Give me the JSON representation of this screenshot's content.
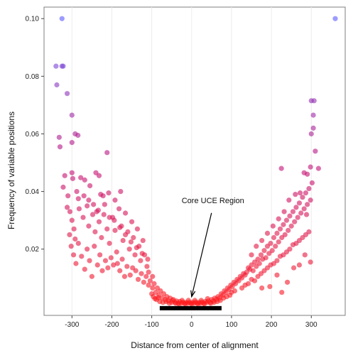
{
  "chart_data": {
    "type": "scatter",
    "title": "",
    "xlabel": "Distance from center of alignment",
    "ylabel": "Frequency of variable positions",
    "xlim": [
      -370,
      385
    ],
    "ylim": [
      -0.003,
      0.104
    ],
    "x_ticks": [
      -300,
      -200,
      -100,
      0,
      100,
      200,
      300
    ],
    "x_tick_labels": [
      "-300",
      "-200",
      "-100",
      "0",
      "100",
      "200",
      "300"
    ],
    "y_ticks": [
      0.02,
      0.04,
      0.06,
      0.08,
      0.1
    ],
    "y_tick_labels": [
      "0.02",
      "0.04",
      "0.06",
      "0.08",
      "0.10"
    ],
    "grid": true,
    "color_encoding": "point color shifts from red (low frequency) to blue-violet (high frequency)",
    "colors": {
      "low": "#ff1a1a",
      "mid": "#c0107a",
      "high": "#5a5aff"
    },
    "annotation": {
      "text": "Core UCE Region",
      "arrow_to": [
        0,
        0.0035
      ],
      "text_at": [
        -25,
        0.036
      ]
    },
    "core_region_bar": {
      "x_start": -80,
      "x_end": 75,
      "y": -0.0005
    },
    "points": [
      [
        -325,
        0.1
      ],
      [
        360,
        0.1
      ],
      [
        -340,
        0.0835
      ],
      [
        -325,
        0.0835
      ],
      [
        -322,
        0.0835
      ],
      [
        -338,
        0.077
      ],
      [
        -312,
        0.074
      ],
      [
        -300,
        0.0665
      ],
      [
        -292,
        0.06
      ],
      [
        -285,
        0.0595
      ],
      [
        -300,
        0.057
      ],
      [
        -332,
        0.0588
      ],
      [
        -330,
        0.0555
      ],
      [
        300,
        0.0715
      ],
      [
        307,
        0.0715
      ],
      [
        305,
        0.0665
      ],
      [
        300,
        0.06
      ],
      [
        305,
        0.062
      ],
      [
        310,
        0.054
      ],
      [
        318,
        0.048
      ],
      [
        282,
        0.0465
      ],
      [
        298,
        0.0485
      ],
      [
        290,
        0.046
      ],
      [
        225,
        0.048
      ],
      [
        -318,
        0.0455
      ],
      [
        -322,
        0.0415
      ],
      [
        -300,
        0.0465
      ],
      [
        -298,
        0.0445
      ],
      [
        -278,
        0.0448
      ],
      [
        -240,
        0.0465
      ],
      [
        -232,
        0.0455
      ],
      [
        -212,
        0.0535
      ],
      [
        -288,
        0.04
      ],
      [
        -268,
        0.044
      ],
      [
        -255,
        0.042
      ],
      [
        -228,
        0.039
      ],
      [
        -222,
        0.0385
      ],
      [
        -208,
        0.0395
      ],
      [
        -178,
        0.04
      ],
      [
        -192,
        0.037
      ],
      [
        -310,
        0.0385
      ],
      [
        -305,
        0.033
      ],
      [
        -300,
        0.03
      ],
      [
        -295,
        0.027
      ],
      [
        -282,
        0.034
      ],
      [
        -272,
        0.031
      ],
      [
        -262,
        0.035
      ],
      [
        -258,
        0.028
      ],
      [
        -248,
        0.032
      ],
      [
        -242,
        0.026
      ],
      [
        -238,
        0.033
      ],
      [
        -232,
        0.0295
      ],
      [
        -226,
        0.024
      ],
      [
        -218,
        0.0355
      ],
      [
        -212,
        0.027
      ],
      [
        -206,
        0.022
      ],
      [
        -198,
        0.031
      ],
      [
        -192,
        0.0265
      ],
      [
        -188,
        0.019
      ],
      [
        -182,
        0.034
      ],
      [
        -176,
        0.028
      ],
      [
        -172,
        0.023
      ],
      [
        -166,
        0.0325
      ],
      [
        -160,
        0.026
      ],
      [
        -156,
        0.02
      ],
      [
        -150,
        0.0295
      ],
      [
        -146,
        0.024
      ],
      [
        -142,
        0.018
      ],
      [
        -136,
        0.027
      ],
      [
        -132,
        0.021
      ],
      [
        -128,
        0.016
      ],
      [
        -122,
        0.023
      ],
      [
        -118,
        0.018
      ],
      [
        -112,
        0.014
      ],
      [
        -108,
        0.012
      ],
      [
        -302,
        0.021
      ],
      [
        -296,
        0.018
      ],
      [
        -290,
        0.015
      ],
      [
        -284,
        0.022
      ],
      [
        -276,
        0.0175
      ],
      [
        -268,
        0.013
      ],
      [
        -262,
        0.02
      ],
      [
        -256,
        0.016
      ],
      [
        -250,
        0.0105
      ],
      [
        -244,
        0.021
      ],
      [
        -236,
        0.0145
      ],
      [
        -230,
        0.018
      ],
      [
        -224,
        0.0125
      ],
      [
        -216,
        0.016
      ],
      [
        -210,
        0.0135
      ],
      [
        -202,
        0.017
      ],
      [
        -196,
        0.0145
      ],
      [
        -186,
        0.015
      ],
      [
        -180,
        0.0125
      ],
      [
        -174,
        0.0165
      ],
      [
        -168,
        0.0105
      ],
      [
        -162,
        0.014
      ],
      [
        -154,
        0.011
      ],
      [
        -148,
        0.0135
      ],
      [
        -140,
        0.0125
      ],
      [
        -134,
        0.0095
      ],
      [
        -126,
        0.0115
      ],
      [
        -120,
        0.0085
      ],
      [
        -114,
        0.0105
      ],
      [
        -108,
        0.0075
      ],
      [
        -104,
        0.009
      ],
      [
        -98,
        0.0065
      ],
      [
        -94,
        0.008
      ],
      [
        -90,
        0.005
      ],
      [
        -86,
        0.0065
      ],
      [
        -82,
        0.004
      ],
      [
        -78,
        0.0055
      ],
      [
        -74,
        0.003
      ],
      [
        -70,
        0.0045
      ],
      [
        -66,
        0.0025
      ],
      [
        -62,
        0.0035
      ],
      [
        -58,
        0.002
      ],
      [
        -54,
        0.003
      ],
      [
        -50,
        0.0015
      ],
      [
        -46,
        0.0025
      ],
      [
        -42,
        0.0015
      ],
      [
        -38,
        0.002
      ],
      [
        -34,
        0.0012
      ],
      [
        -30,
        0.0018
      ],
      [
        -26,
        0.0012
      ],
      [
        -22,
        0.0016
      ],
      [
        -18,
        0.0012
      ],
      [
        -14,
        0.0015
      ],
      [
        -10,
        0.0012
      ],
      [
        -6,
        0.0015
      ],
      [
        -2,
        0.0012
      ],
      [
        2,
        0.0015
      ],
      [
        6,
        0.0012
      ],
      [
        10,
        0.0016
      ],
      [
        14,
        0.0012
      ],
      [
        18,
        0.0015
      ],
      [
        22,
        0.0012
      ],
      [
        26,
        0.0016
      ],
      [
        30,
        0.0012
      ],
      [
        34,
        0.0018
      ],
      [
        38,
        0.0015
      ],
      [
        42,
        0.002
      ],
      [
        46,
        0.0015
      ],
      [
        50,
        0.0025
      ],
      [
        54,
        0.002
      ],
      [
        58,
        0.003
      ],
      [
        62,
        0.0025
      ],
      [
        66,
        0.0035
      ],
      [
        70,
        0.003
      ],
      [
        74,
        0.0045
      ],
      [
        78,
        0.004
      ],
      [
        82,
        0.0055
      ],
      [
        86,
        0.005
      ],
      [
        90,
        0.0065
      ],
      [
        94,
        0.006
      ],
      [
        98,
        0.0075
      ],
      [
        102,
        0.007
      ],
      [
        106,
        0.0085
      ],
      [
        110,
        0.008
      ],
      [
        114,
        0.0095
      ],
      [
        118,
        0.009
      ],
      [
        122,
        0.0105
      ],
      [
        126,
        0.01
      ],
      [
        130,
        0.0115
      ],
      [
        134,
        0.011
      ],
      [
        -88,
        0.0025
      ],
      [
        -80,
        0.0018
      ],
      [
        -72,
        0.0015
      ],
      [
        -64,
        0.0018
      ],
      [
        -56,
        0.0012
      ],
      [
        -48,
        0.0022
      ],
      [
        -40,
        0.0012
      ],
      [
        -32,
        0.001
      ],
      [
        -24,
        0.0022
      ],
      [
        -16,
        0.001
      ],
      [
        -8,
        0.0022
      ],
      [
        0,
        0.001
      ],
      [
        8,
        0.0022
      ],
      [
        16,
        0.001
      ],
      [
        24,
        0.0022
      ],
      [
        32,
        0.001
      ],
      [
        40,
        0.0028
      ],
      [
        48,
        0.0012
      ],
      [
        56,
        0.0015
      ],
      [
        64,
        0.0018
      ],
      [
        72,
        0.0022
      ],
      [
        80,
        0.003
      ],
      [
        88,
        0.0035
      ],
      [
        96,
        0.004
      ],
      [
        -96,
        0.0035
      ],
      [
        -100,
        0.0045
      ],
      [
        -92,
        0.0028
      ],
      [
        -84,
        0.0032
      ],
      [
        100,
        0.005
      ],
      [
        108,
        0.0055
      ],
      [
        138,
        0.012
      ],
      [
        142,
        0.0135
      ],
      [
        146,
        0.013
      ],
      [
        150,
        0.0145
      ],
      [
        154,
        0.0125
      ],
      [
        158,
        0.0155
      ],
      [
        162,
        0.014
      ],
      [
        166,
        0.0165
      ],
      [
        170,
        0.015
      ],
      [
        174,
        0.018
      ],
      [
        178,
        0.0165
      ],
      [
        182,
        0.0195
      ],
      [
        186,
        0.017
      ],
      [
        190,
        0.021
      ],
      [
        194,
        0.0185
      ],
      [
        198,
        0.022
      ],
      [
        202,
        0.0195
      ],
      [
        206,
        0.024
      ],
      [
        210,
        0.021
      ],
      [
        214,
        0.0255
      ],
      [
        218,
        0.0225
      ],
      [
        222,
        0.027
      ],
      [
        226,
        0.024
      ],
      [
        230,
        0.0285
      ],
      [
        234,
        0.025
      ],
      [
        238,
        0.03
      ],
      [
        242,
        0.0265
      ],
      [
        246,
        0.0315
      ],
      [
        250,
        0.028
      ],
      [
        254,
        0.033
      ],
      [
        258,
        0.0295
      ],
      [
        262,
        0.0345
      ],
      [
        266,
        0.031
      ],
      [
        270,
        0.036
      ],
      [
        274,
        0.0325
      ],
      [
        278,
        0.038
      ],
      [
        282,
        0.034
      ],
      [
        286,
        0.0395
      ],
      [
        290,
        0.0355
      ],
      [
        294,
        0.041
      ],
      [
        298,
        0.037
      ],
      [
        302,
        0.043
      ],
      [
        126,
        0.0065
      ],
      [
        134,
        0.0075
      ],
      [
        142,
        0.008
      ],
      [
        150,
        0.0095
      ],
      [
        158,
        0.009
      ],
      [
        166,
        0.0105
      ],
      [
        174,
        0.0115
      ],
      [
        182,
        0.0125
      ],
      [
        190,
        0.0135
      ],
      [
        198,
        0.0145
      ],
      [
        206,
        0.015
      ],
      [
        214,
        0.016
      ],
      [
        222,
        0.0175
      ],
      [
        230,
        0.018
      ],
      [
        238,
        0.019
      ],
      [
        246,
        0.02
      ],
      [
        254,
        0.0215
      ],
      [
        262,
        0.022
      ],
      [
        270,
        0.023
      ],
      [
        278,
        0.024
      ],
      [
        286,
        0.025
      ],
      [
        294,
        0.026
      ],
      [
        240,
        0.0085
      ],
      [
        226,
        0.005
      ],
      [
        196,
        0.007
      ],
      [
        176,
        0.0065
      ],
      [
        214,
        0.011
      ],
      [
        256,
        0.0135
      ],
      [
        270,
        0.0145
      ],
      [
        284,
        0.018
      ],
      [
        298,
        0.0155
      ],
      [
        150,
        0.018
      ],
      [
        162,
        0.021
      ],
      [
        176,
        0.023
      ],
      [
        190,
        0.0255
      ],
      [
        204,
        0.028
      ],
      [
        218,
        0.0305
      ],
      [
        232,
        0.033
      ],
      [
        244,
        0.037
      ],
      [
        260,
        0.039
      ],
      [
        272,
        0.0395
      ],
      [
        288,
        0.032
      ],
      [
        -98,
        0.0105
      ],
      [
        -110,
        0.0165
      ],
      [
        -124,
        0.0185
      ],
      [
        -138,
        0.0205
      ],
      [
        -152,
        0.0225
      ],
      [
        -166,
        0.025
      ],
      [
        -180,
        0.0275
      ],
      [
        -194,
        0.03
      ],
      [
        -206,
        0.031
      ],
      [
        -220,
        0.032
      ],
      [
        -234,
        0.0335
      ],
      [
        -246,
        0.0355
      ],
      [
        -258,
        0.037
      ],
      [
        -270,
        0.0385
      ],
      [
        -284,
        0.0375
      ],
      [
        -312,
        0.0345
      ],
      [
        -306,
        0.025
      ],
      [
        -292,
        0.0235
      ]
    ]
  }
}
